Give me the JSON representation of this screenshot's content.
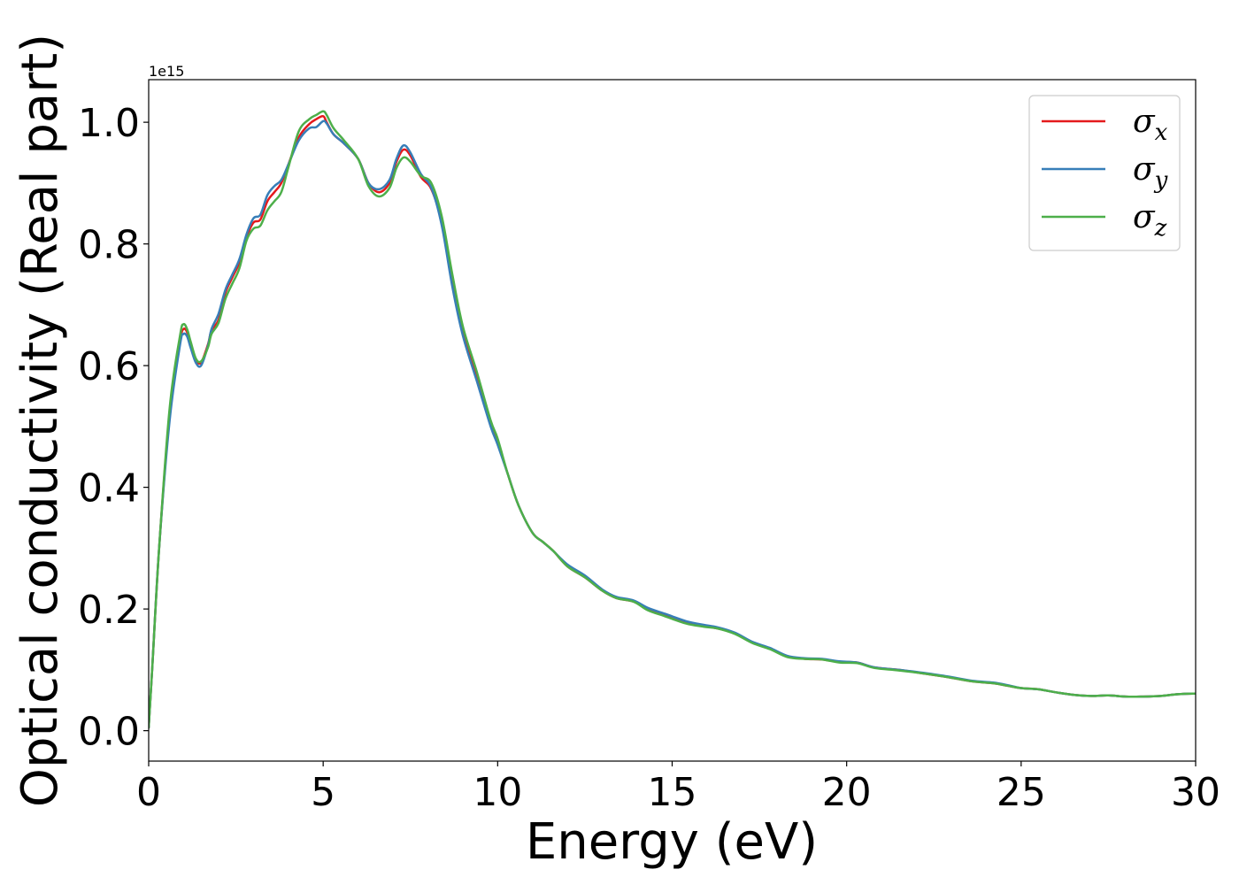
{
  "chart_data": {
    "type": "line",
    "title": "",
    "xlabel": "Energy (eV)",
    "ylabel": "Optical conductivity (Real part)",
    "offset_label": "1e15",
    "xlim": [
      0,
      30
    ],
    "ylim": [
      -0.05,
      1.07
    ],
    "x_ticks": [
      0,
      5,
      10,
      15,
      20,
      25,
      30
    ],
    "y_ticks": [
      0.0,
      0.2,
      0.4,
      0.6,
      0.8,
      1.0
    ],
    "x_tick_labels": [
      "0",
      "5",
      "10",
      "15",
      "20",
      "25",
      "30"
    ],
    "y_tick_labels": [
      "0.0",
      "0.2",
      "0.4",
      "0.6",
      "0.8",
      "1.0"
    ],
    "grid": false,
    "legend_position": "top-right",
    "x": [
      0,
      0.1,
      0.3,
      0.6,
      0.9,
      1.0,
      1.1,
      1.2,
      1.35,
      1.5,
      1.7,
      1.8,
      2.0,
      2.2,
      2.4,
      2.6,
      2.8,
      3.0,
      3.2,
      3.4,
      3.6,
      3.8,
      4.0,
      4.3,
      4.6,
      4.8,
      5.0,
      5.1,
      5.3,
      5.6,
      6.0,
      6.3,
      6.6,
      6.9,
      7.1,
      7.3,
      7.5,
      7.8,
      8.1,
      8.4,
      8.7,
      9.0,
      9.4,
      9.8,
      10.0,
      10.3,
      10.6,
      11.0,
      11.3,
      11.6,
      12.0,
      12.5,
      13.0,
      13.4,
      13.9,
      14.3,
      14.8,
      15.4,
      15.9,
      16.3,
      16.8,
      17.3,
      17.8,
      18.3,
      18.8,
      19.3,
      19.8,
      20.3,
      20.8,
      21.5,
      22.2,
      22.9,
      23.6,
      24.2,
      24.6,
      25.0,
      25.5,
      26.0,
      26.5,
      27.0,
      27.5,
      28.0,
      28.5,
      29.0,
      29.5,
      30.0
    ],
    "series": [
      {
        "name": "σx",
        "color": "#e41a1c",
        "values": [
          0.005,
          0.1,
          0.3,
          0.52,
          0.64,
          0.66,
          0.655,
          0.635,
          0.61,
          0.605,
          0.635,
          0.658,
          0.675,
          0.72,
          0.745,
          0.77,
          0.81,
          0.835,
          0.84,
          0.87,
          0.885,
          0.9,
          0.93,
          0.975,
          0.997,
          1.005,
          1.01,
          1.0,
          0.98,
          0.965,
          0.94,
          0.9,
          0.885,
          0.9,
          0.935,
          0.955,
          0.945,
          0.91,
          0.89,
          0.835,
          0.74,
          0.655,
          0.58,
          0.505,
          0.475,
          0.42,
          0.37,
          0.325,
          0.31,
          0.295,
          0.27,
          0.252,
          0.23,
          0.218,
          0.212,
          0.2,
          0.19,
          0.178,
          0.172,
          0.168,
          0.16,
          0.145,
          0.135,
          0.122,
          0.118,
          0.117,
          0.113,
          0.112,
          0.104,
          0.1,
          0.094,
          0.088,
          0.081,
          0.078,
          0.074,
          0.07,
          0.068,
          0.063,
          0.059,
          0.057,
          0.058,
          0.056,
          0.056,
          0.057,
          0.06,
          0.061
        ]
      },
      {
        "name": "σy",
        "color": "#377eb8",
        "values": [
          0.005,
          0.1,
          0.3,
          0.51,
          0.635,
          0.652,
          0.648,
          0.63,
          0.605,
          0.6,
          0.633,
          0.66,
          0.685,
          0.725,
          0.75,
          0.775,
          0.815,
          0.842,
          0.848,
          0.88,
          0.895,
          0.905,
          0.93,
          0.97,
          0.99,
          0.992,
          1.002,
          0.998,
          0.98,
          0.965,
          0.94,
          0.9,
          0.89,
          0.905,
          0.94,
          0.962,
          0.95,
          0.915,
          0.892,
          0.83,
          0.73,
          0.65,
          0.575,
          0.5,
          0.47,
          0.42,
          0.37,
          0.325,
          0.31,
          0.295,
          0.273,
          0.255,
          0.232,
          0.22,
          0.214,
          0.202,
          0.192,
          0.18,
          0.174,
          0.17,
          0.161,
          0.146,
          0.136,
          0.123,
          0.119,
          0.118,
          0.114,
          0.112,
          0.104,
          0.1,
          0.095,
          0.089,
          0.082,
          0.079,
          0.075,
          0.07,
          0.068,
          0.063,
          0.059,
          0.057,
          0.058,
          0.056,
          0.056,
          0.057,
          0.06,
          0.061
        ]
      },
      {
        "name": "σz",
        "color": "#4daf4a",
        "values": [
          0.005,
          0.1,
          0.3,
          0.53,
          0.65,
          0.668,
          0.66,
          0.64,
          0.612,
          0.607,
          0.63,
          0.652,
          0.67,
          0.71,
          0.735,
          0.76,
          0.805,
          0.825,
          0.83,
          0.855,
          0.87,
          0.885,
          0.925,
          0.985,
          1.005,
          1.012,
          1.018,
          1.012,
          0.99,
          0.97,
          0.94,
          0.895,
          0.878,
          0.892,
          0.925,
          0.942,
          0.935,
          0.912,
          0.9,
          0.845,
          0.75,
          0.665,
          0.59,
          0.51,
          0.48,
          0.42,
          0.37,
          0.325,
          0.31,
          0.295,
          0.27,
          0.252,
          0.23,
          0.218,
          0.212,
          0.198,
          0.188,
          0.176,
          0.171,
          0.168,
          0.159,
          0.144,
          0.134,
          0.121,
          0.118,
          0.117,
          0.112,
          0.111,
          0.103,
          0.099,
          0.094,
          0.088,
          0.081,
          0.078,
          0.074,
          0.07,
          0.068,
          0.063,
          0.059,
          0.057,
          0.058,
          0.056,
          0.056,
          0.057,
          0.06,
          0.061
        ]
      }
    ]
  }
}
